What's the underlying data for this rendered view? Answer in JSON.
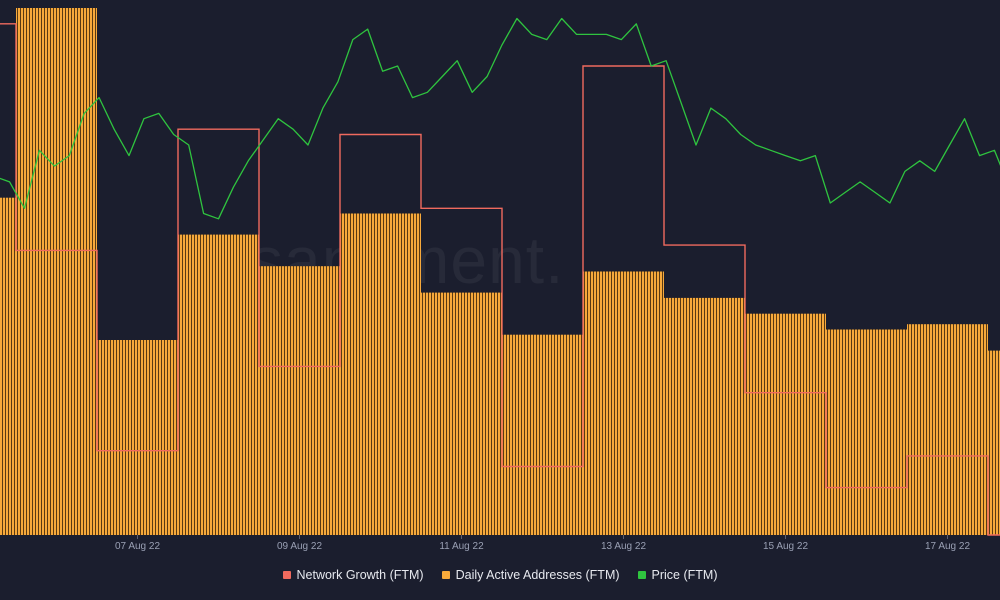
{
  "chart_data": {
    "type": "bar",
    "watermark": "santiment.",
    "x_tick_labels": [
      "07 Aug 22",
      "09 Aug 22",
      "11 Aug 22",
      "13 Aug 22",
      "15 Aug 22",
      "17 Aug 22"
    ],
    "x_tick_dates": [
      "2022-08-07",
      "2022-08-09",
      "2022-08-11",
      "2022-08-13",
      "2022-08-15",
      "2022-08-17"
    ],
    "x_range": [
      "2022-08-05",
      "2022-08-18"
    ],
    "days": [
      "2022-08-05",
      "2022-08-06",
      "2022-08-07",
      "2022-08-08",
      "2022-08-09",
      "2022-08-10",
      "2022-08-11",
      "2022-08-12",
      "2022-08-13",
      "2022-08-14",
      "2022-08-15",
      "2022-08-16",
      "2022-08-17",
      "2022-08-18"
    ],
    "grid": false,
    "legend_position": "bottom-center",
    "series": [
      {
        "name": "Network Growth (FTM)",
        "type": "step-line",
        "color": "#f06a5e",
        "values": [
          0.97,
          0.54,
          0.16,
          0.77,
          0.32,
          0.76,
          0.62,
          0.13,
          0.89,
          0.55,
          0.27,
          0.09,
          0.15,
          0.0
        ],
        "ylim": [
          0,
          1
        ]
      },
      {
        "name": "Daily Active Addresses (FTM)",
        "type": "bar",
        "color": "#f7a93b",
        "values": [
          0.64,
          1.0,
          0.37,
          0.57,
          0.51,
          0.61,
          0.46,
          0.38,
          0.5,
          0.45,
          0.42,
          0.39,
          0.4,
          0.35
        ],
        "ylim": [
          0,
          1
        ]
      },
      {
        "name": "Price (FTM)",
        "type": "line",
        "color": "#2fc43f",
        "values": [
          0.66,
          0.7,
          0.72,
          0.6,
          0.68,
          0.67,
          0.62,
          0.73,
          0.7,
          0.72,
          0.8,
          0.83,
          0.77,
          0.72,
          0.79,
          0.8,
          0.76,
          0.74,
          0.61,
          0.6,
          0.66,
          0.71,
          0.75,
          0.79,
          0.77,
          0.74,
          0.81,
          0.86,
          0.94,
          0.96,
          0.88,
          0.89,
          0.83,
          0.84,
          0.87,
          0.9,
          0.84,
          0.87,
          0.93,
          0.98,
          0.95,
          0.94,
          0.98,
          0.95,
          0.95,
          0.95,
          0.94,
          0.97,
          0.89,
          0.9,
          0.82,
          0.74,
          0.81,
          0.79,
          0.76,
          0.74,
          0.73,
          0.72,
          0.71,
          0.72,
          0.63,
          0.65,
          0.67,
          0.65,
          0.63,
          0.69,
          0.71,
          0.69,
          0.74,
          0.79,
          0.72,
          0.73,
          0.66,
          0.67,
          0.6,
          0.68,
          0.71
        ],
        "ylim": [
          0,
          1
        ]
      }
    ]
  }
}
